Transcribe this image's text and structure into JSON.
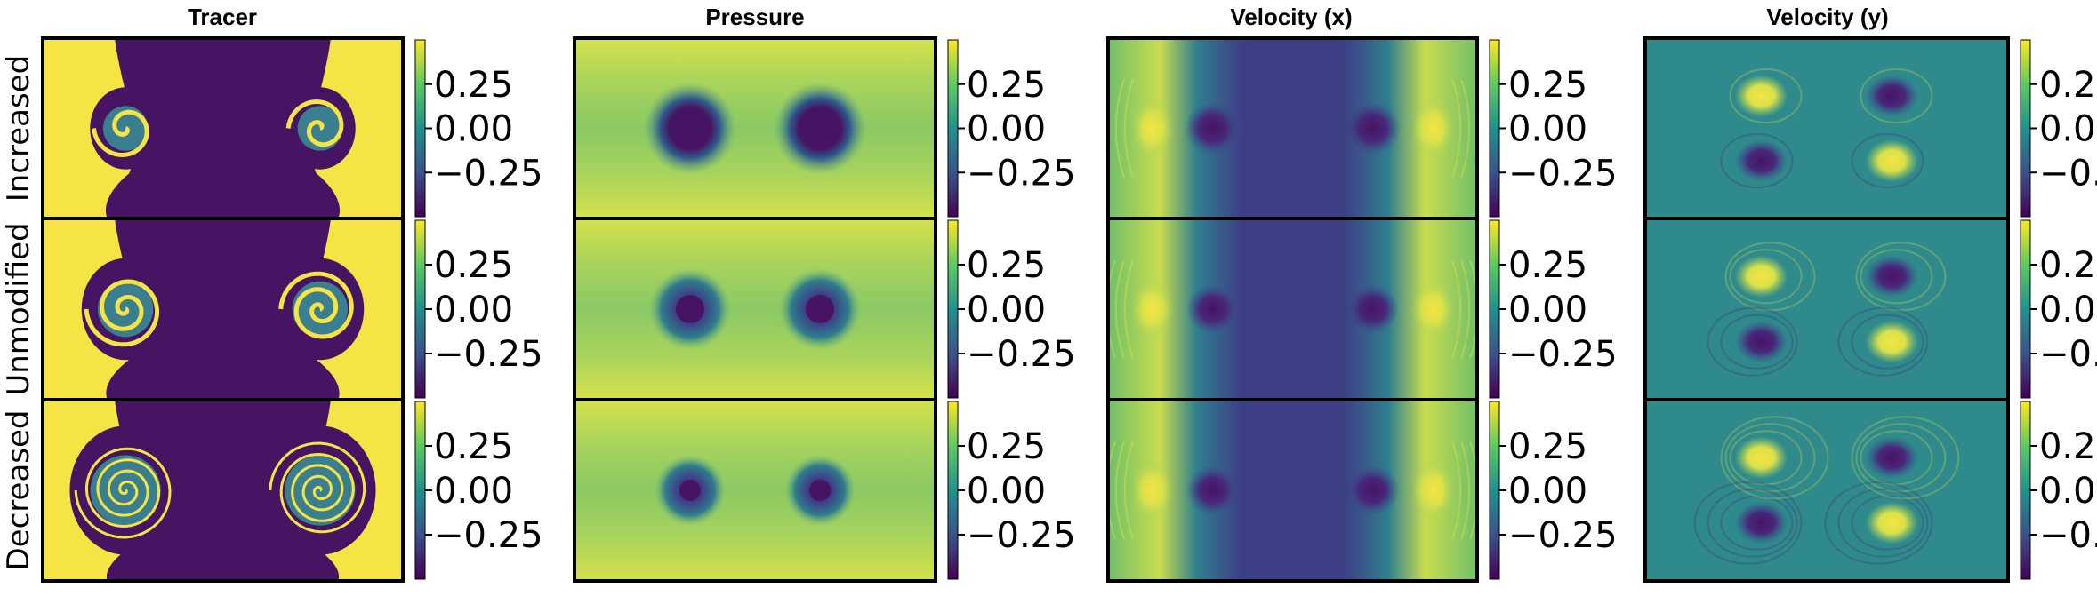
{
  "columns": [
    {
      "title": "Tracer",
      "field": "tracer"
    },
    {
      "title": "Pressure",
      "field": "pressure"
    },
    {
      "title": "Velocity (x)",
      "field": "vx"
    },
    {
      "title": "Velocity (y)",
      "field": "vy"
    }
  ],
  "rows": [
    {
      "label": "Increased"
    },
    {
      "label": "Unmodified"
    },
    {
      "label": "Decreased"
    }
  ],
  "colorbar": {
    "ticks": [
      {
        "value": 0.25,
        "label": "0.25"
      },
      {
        "value": 0.0,
        "label": "0.00"
      },
      {
        "value": -0.25,
        "label": "−0.25"
      }
    ],
    "range": [
      -0.5,
      0.5
    ],
    "colormap": "viridis",
    "colors": {
      "low": "#440154",
      "mid": "#21918c",
      "high": "#fde725"
    }
  },
  "colors": {
    "background": "#ffffff",
    "panel_border": "#000000",
    "yellow": "#f5e444",
    "purple": "#461463",
    "teal": "#3a7f8f",
    "green": "#8fcf5c"
  }
}
